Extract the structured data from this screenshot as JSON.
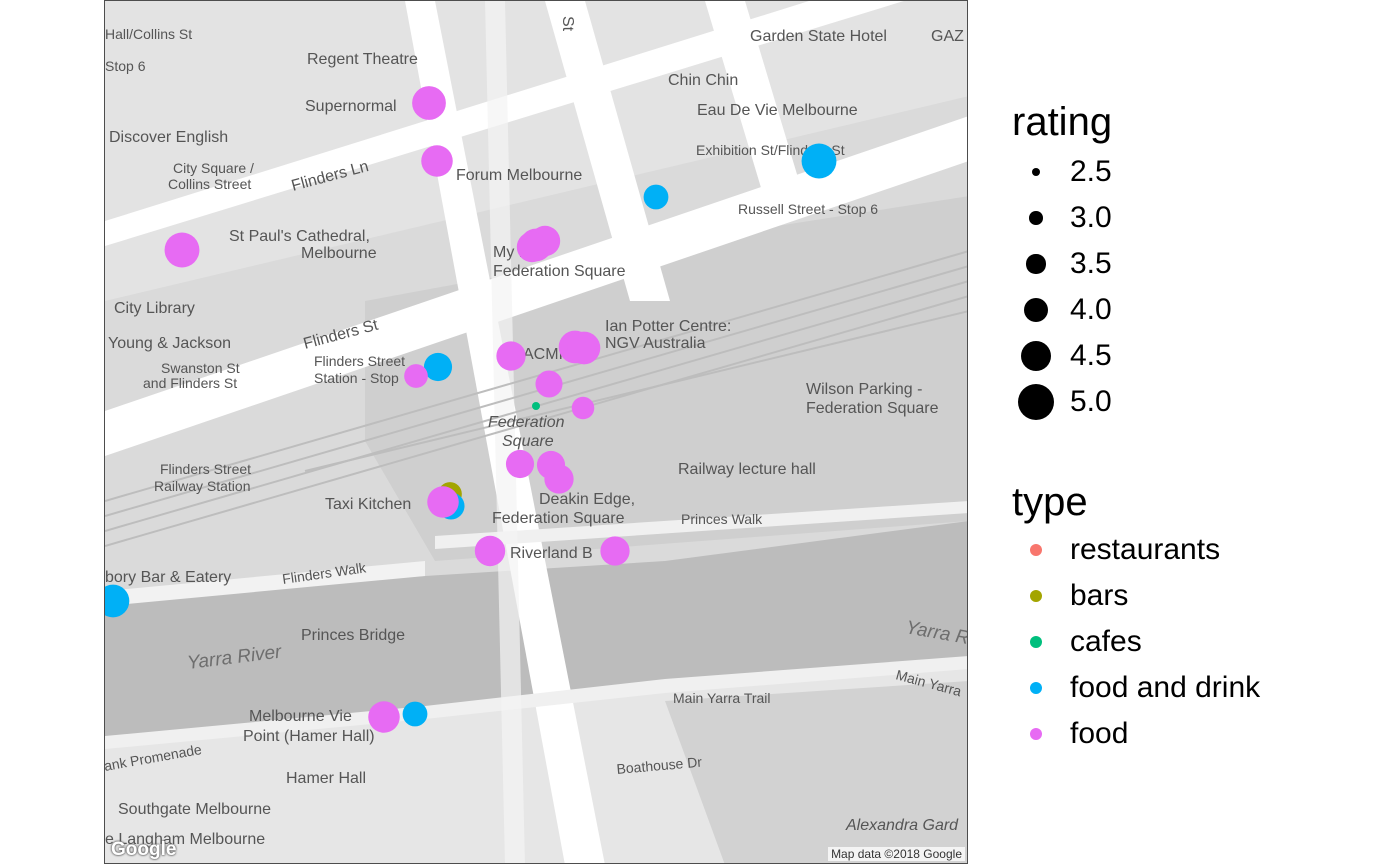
{
  "map": {
    "attribution": "Map data ©2018 Google",
    "logo": "Google",
    "labels": [
      {
        "id": "regent-theatre",
        "text": "Regent Theatre"
      },
      {
        "id": "garden-state-hotel",
        "text": "Garden State Hotel"
      },
      {
        "id": "gaz",
        "text": "GAZ"
      },
      {
        "id": "hall-collins",
        "text": "Hall/Collins St"
      },
      {
        "id": "stop-6",
        "text": "Stop 6"
      },
      {
        "id": "st",
        "text": "St"
      },
      {
        "id": "supernormal",
        "text": "Supernormal"
      },
      {
        "id": "chin-chin",
        "text": "Chin Chin"
      },
      {
        "id": "eau-de-vie",
        "text": "Eau De Vie Melbourne"
      },
      {
        "id": "discover-english",
        "text": "Discover English"
      },
      {
        "id": "city-square-1",
        "text": "City Square /"
      },
      {
        "id": "city-square-2",
        "text": "Collins Street"
      },
      {
        "id": "flinders-ln",
        "text": "Flinders Ln"
      },
      {
        "id": "forum-melbourne",
        "text": "Forum Melbourne"
      },
      {
        "id": "exhibition-st",
        "text": "Exhibition St/Flinders St"
      },
      {
        "id": "russell-st",
        "text": "Russell Street - Stop 6"
      },
      {
        "id": "st-pauls-1",
        "text": "St Paul's Cathedral,"
      },
      {
        "id": "st-pauls-2",
        "text": "Melbourne"
      },
      {
        "id": "my-fed-1",
        "text": "My Fed"
      },
      {
        "id": "my-fed-2",
        "text": "Federation Square"
      },
      {
        "id": "city-library",
        "text": "City Library"
      },
      {
        "id": "flinders-st",
        "text": "Flinders St"
      },
      {
        "id": "ian-potter-1",
        "text": "Ian Potter Centre:"
      },
      {
        "id": "ian-potter-2",
        "text": "NGV Australia"
      },
      {
        "id": "young-jackson",
        "text": "Young & Jackson"
      },
      {
        "id": "acmi",
        "text": "ACMI"
      },
      {
        "id": "swanston-1",
        "text": "Swanston St"
      },
      {
        "id": "swanston-2",
        "text": "and Flinders St"
      },
      {
        "id": "flinders-station-stop-1",
        "text": "Flinders Street"
      },
      {
        "id": "flinders-station-stop-2",
        "text": "Station - Stop"
      },
      {
        "id": "wilson-parking-1",
        "text": "Wilson Parking -"
      },
      {
        "id": "wilson-parking-2",
        "text": "Federation Square"
      },
      {
        "id": "fed-square-1",
        "text": "Federation"
      },
      {
        "id": "fed-square-2",
        "text": "Square"
      },
      {
        "id": "flinders-station-1",
        "text": "Flinders Street"
      },
      {
        "id": "flinders-station-2",
        "text": "Railway Station"
      },
      {
        "id": "railway-lecture-hall",
        "text": "Railway lecture hall"
      },
      {
        "id": "taxi-kitchen",
        "text": "Taxi Kitchen"
      },
      {
        "id": "deakin-edge-1",
        "text": "Deakin Edge,"
      },
      {
        "id": "deakin-edge-2",
        "text": "Federation Square"
      },
      {
        "id": "princes-walk",
        "text": "Princes Walk"
      },
      {
        "id": "riverland",
        "text": "Riverland B"
      },
      {
        "id": "bar-eatery",
        "text": "bory Bar & Eatery"
      },
      {
        "id": "flinders-walk",
        "text": "Flinders Walk"
      },
      {
        "id": "princes-bridge",
        "text": "Princes Bridge"
      },
      {
        "id": "yarra-river-left",
        "text": "Yarra River"
      },
      {
        "id": "yarra-river-right",
        "text": "Yarra R"
      },
      {
        "id": "main-yarra-trail-1",
        "text": "Main Yarra Trail"
      },
      {
        "id": "main-yarra-trail-2",
        "text": "Main Yarra"
      },
      {
        "id": "melbourne-view-1",
        "text": "Melbourne Vie"
      },
      {
        "id": "melbourne-view-2",
        "text": "Point (Hamer Hall)"
      },
      {
        "id": "bank-promenade",
        "text": "ank Promenade"
      },
      {
        "id": "hamer-hall",
        "text": "Hamer Hall"
      },
      {
        "id": "boathouse-dr",
        "text": "Boathouse Dr"
      },
      {
        "id": "southgate",
        "text": "Southgate Melbourne"
      },
      {
        "id": "langham",
        "text": "e Langham Melbourne"
      },
      {
        "id": "alexandra-gardens",
        "text": "Alexandra Gard"
      }
    ]
  },
  "legend": {
    "size": {
      "title": "rating",
      "items": [
        {
          "label": "2.5",
          "value": 2.5
        },
        {
          "label": "3.0",
          "value": 3.0
        },
        {
          "label": "3.5",
          "value": 3.5
        },
        {
          "label": "4.0",
          "value": 4.0
        },
        {
          "label": "4.5",
          "value": 4.5
        },
        {
          "label": "5.0",
          "value": 5.0
        }
      ]
    },
    "color": {
      "title": "type",
      "items": [
        {
          "label": "restaurants",
          "color": "#F8766D"
        },
        {
          "label": "bars",
          "color": "#A3A500"
        },
        {
          "label": "cafes",
          "color": "#00BF7D"
        },
        {
          "label": "food and drink",
          "color": "#00B0F6"
        },
        {
          "label": "food",
          "color": "#E76BF3"
        }
      ]
    }
  },
  "points": [
    {
      "type": "food",
      "rating": 4.8
    },
    {
      "type": "food",
      "rating": 4.6
    },
    {
      "type": "food and drink",
      "rating": 4.9
    },
    {
      "type": "food and drink",
      "rating": 4.0
    },
    {
      "type": "food",
      "rating": 4.9
    },
    {
      "type": "food",
      "rating": 4.7
    },
    {
      "type": "food",
      "rating": 4.5
    },
    {
      "type": "food",
      "rating": 4.5
    },
    {
      "type": "food and drink",
      "rating": 4.3
    },
    {
      "type": "food",
      "rating": 3.9
    },
    {
      "type": "food",
      "rating": 4.4
    },
    {
      "type": "food",
      "rating": 4.7
    },
    {
      "type": "food",
      "rating": 4.7
    },
    {
      "type": "food",
      "rating": 4.2
    },
    {
      "type": "cafes",
      "rating": 2.5
    },
    {
      "type": "food",
      "rating": 3.8
    },
    {
      "type": "food",
      "rating": 4.3
    },
    {
      "type": "food",
      "rating": 4.3
    },
    {
      "type": "food",
      "rating": 4.4
    },
    {
      "type": "bars",
      "rating": 3.9
    },
    {
      "type": "food and drink",
      "rating": 4.2
    },
    {
      "type": "food",
      "rating": 4.6
    },
    {
      "type": "food",
      "rating": 4.5
    },
    {
      "type": "food",
      "rating": 4.4
    },
    {
      "type": "food and drink",
      "rating": 4.7
    },
    {
      "type": "food and drink",
      "rating": 4.0
    },
    {
      "type": "food",
      "rating": 4.6
    }
  ]
}
